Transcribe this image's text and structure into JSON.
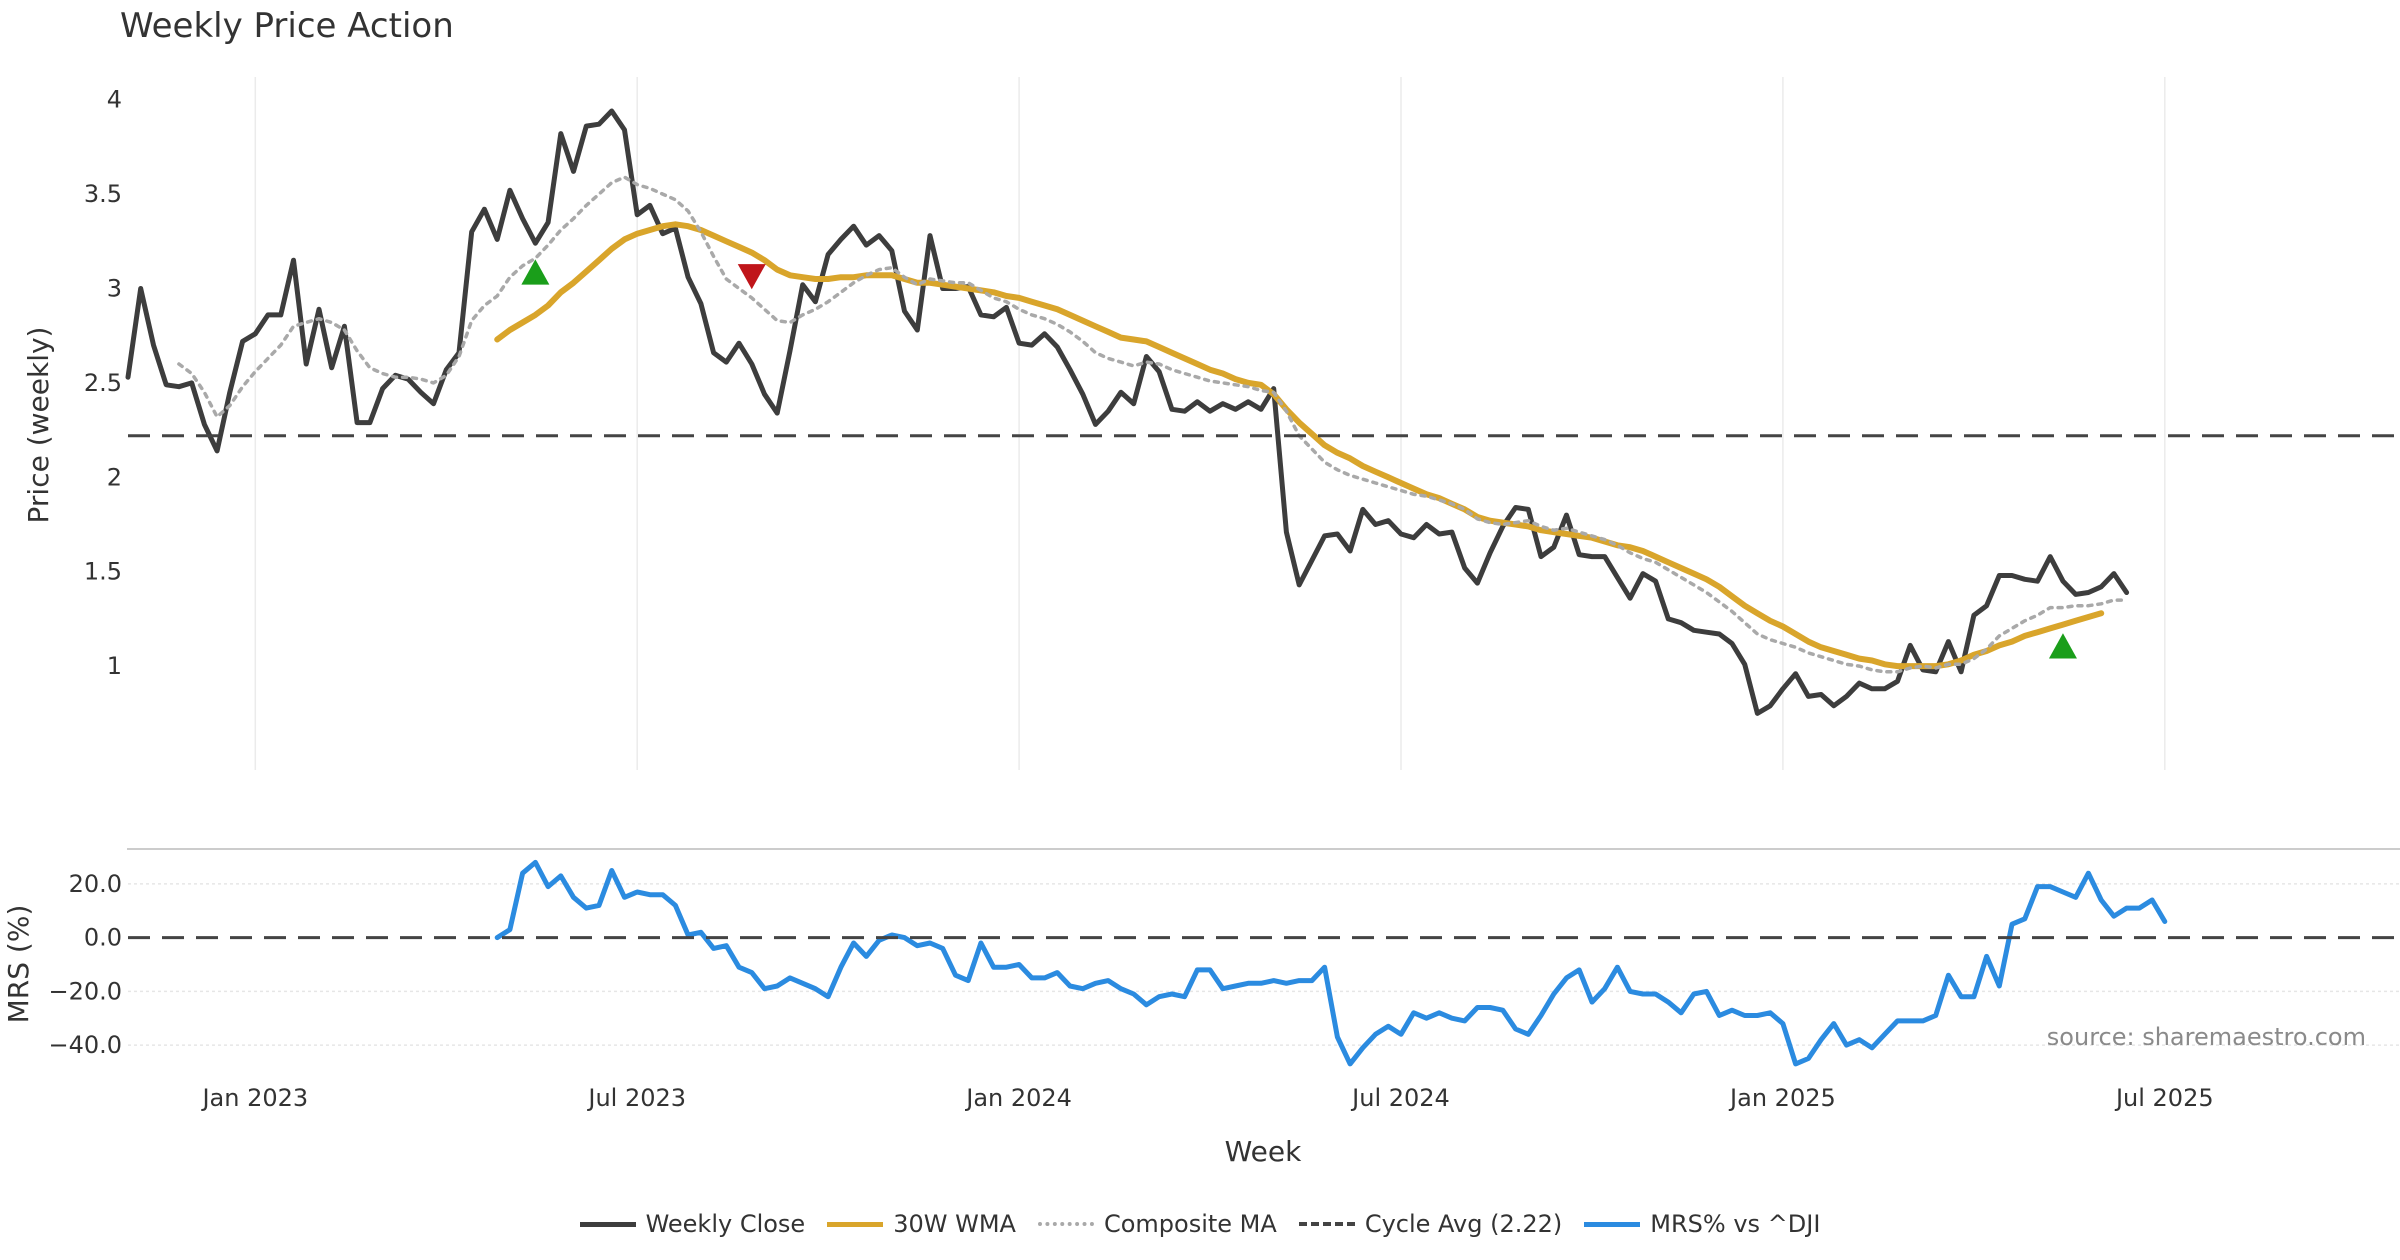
{
  "chart_data": [
    {
      "type": "line",
      "title": "Weekly Price Action",
      "ylabel": "Price (weekly)",
      "ylim": [
        0.45,
        4.12
      ],
      "yticks": [
        "1",
        "1.5",
        "2",
        "2.5",
        "3",
        "3.5",
        "4"
      ],
      "ytick_values": [
        1,
        1.5,
        2,
        2.5,
        3,
        3.5,
        4
      ],
      "grid": "vertical",
      "series": [
        {
          "name": "Weekly Close",
          "color": "#3d3d3d",
          "style": "solid",
          "values": [
            2.53,
            3.0,
            2.7,
            2.49,
            2.48,
            2.5,
            2.28,
            2.14,
            2.45,
            2.72,
            2.76,
            2.86,
            2.86,
            3.15,
            2.6,
            2.89,
            2.58,
            2.8,
            2.29,
            2.29,
            2.47,
            2.54,
            2.52,
            2.45,
            2.39,
            2.57,
            2.66,
            3.3,
            3.42,
            3.26,
            3.52,
            3.37,
            3.24,
            3.35,
            3.82,
            3.62,
            3.86,
            3.87,
            3.94,
            3.84,
            3.39,
            3.44,
            3.29,
            3.32,
            3.06,
            2.92,
            2.66,
            2.61,
            2.71,
            2.6,
            2.44,
            2.34,
            2.67,
            3.02,
            2.93,
            3.18,
            3.26,
            3.33,
            3.23,
            3.28,
            3.2,
            2.88,
            2.78,
            3.28,
            3.0,
            3.0,
            3.01,
            2.86,
            2.85,
            2.9,
            2.71,
            2.7,
            2.76,
            2.69,
            2.57,
            2.44,
            2.28,
            2.35,
            2.45,
            2.39,
            2.64,
            2.56,
            2.36,
            2.35,
            2.4,
            2.35,
            2.39,
            2.36,
            2.4,
            2.36,
            2.47,
            1.71,
            1.43,
            1.56,
            1.69,
            1.7,
            1.61,
            1.83,
            1.75,
            1.77,
            1.7,
            1.68,
            1.75,
            1.7,
            1.71,
            1.52,
            1.44,
            1.6,
            1.74,
            1.84,
            1.83,
            1.58,
            1.63,
            1.8,
            1.59,
            1.58,
            1.58,
            1.47,
            1.36,
            1.49,
            1.45,
            1.25,
            1.23,
            1.19,
            1.18,
            1.17,
            1.12,
            1.01,
            0.75,
            0.79,
            0.88,
            0.96,
            0.84,
            0.85,
            0.79,
            0.84,
            0.91,
            0.88,
            0.88,
            0.92,
            1.11,
            0.98,
            0.97,
            1.13,
            0.97,
            1.27,
            1.32,
            1.48,
            1.48,
            1.46,
            1.45,
            1.58,
            1.45,
            1.38,
            1.39,
            1.42,
            1.49,
            1.39
          ]
        },
        {
          "name": "30W WMA",
          "color": "#d9a52b",
          "style": "solid",
          "values": [
            null,
            null,
            null,
            null,
            null,
            null,
            null,
            null,
            null,
            null,
            null,
            null,
            null,
            null,
            null,
            null,
            null,
            null,
            null,
            null,
            null,
            null,
            null,
            null,
            null,
            null,
            null,
            null,
            null,
            2.73,
            2.78,
            2.82,
            2.86,
            2.91,
            2.98,
            3.03,
            3.09,
            3.15,
            3.21,
            3.26,
            3.29,
            3.31,
            3.33,
            3.34,
            3.33,
            3.31,
            3.28,
            3.25,
            3.22,
            3.19,
            3.15,
            3.1,
            3.07,
            3.06,
            3.05,
            3.05,
            3.06,
            3.06,
            3.07,
            3.07,
            3.07,
            3.05,
            3.03,
            3.03,
            3.02,
            3.01,
            3.0,
            2.99,
            2.98,
            2.96,
            2.95,
            2.93,
            2.91,
            2.89,
            2.86,
            2.83,
            2.8,
            2.77,
            2.74,
            2.73,
            2.72,
            2.69,
            2.66,
            2.63,
            2.6,
            2.57,
            2.55,
            2.52,
            2.5,
            2.49,
            2.44,
            2.36,
            2.29,
            2.23,
            2.17,
            2.13,
            2.1,
            2.06,
            2.03,
            2.0,
            1.97,
            1.94,
            1.91,
            1.89,
            1.86,
            1.83,
            1.79,
            1.77,
            1.76,
            1.75,
            1.74,
            1.72,
            1.71,
            1.7,
            1.69,
            1.68,
            1.66,
            1.64,
            1.63,
            1.61,
            1.58,
            1.55,
            1.52,
            1.49,
            1.46,
            1.42,
            1.37,
            1.32,
            1.28,
            1.24,
            1.21,
            1.17,
            1.13,
            1.1,
            1.08,
            1.06,
            1.04,
            1.03,
            1.01,
            1.0,
            1.0,
            1.0,
            1.0,
            1.01,
            1.03,
            1.06,
            1.08,
            1.11,
            1.13,
            1.16,
            1.18,
            1.2,
            1.22,
            1.24,
            1.26,
            1.28
          ]
        },
        {
          "name": "Composite MA",
          "color": "#a9a9a9",
          "style": "dotted",
          "values": [
            null,
            null,
            null,
            null,
            2.6,
            2.55,
            2.45,
            2.32,
            2.38,
            2.48,
            2.56,
            2.63,
            2.7,
            2.8,
            2.82,
            2.84,
            2.82,
            2.78,
            2.67,
            2.58,
            2.55,
            2.53,
            2.53,
            2.52,
            2.5,
            2.54,
            2.64,
            2.83,
            2.91,
            2.96,
            3.06,
            3.12,
            3.16,
            3.23,
            3.31,
            3.37,
            3.44,
            3.5,
            3.56,
            3.59,
            3.55,
            3.53,
            3.5,
            3.47,
            3.41,
            3.3,
            3.17,
            3.05,
            3.0,
            2.95,
            2.89,
            2.83,
            2.82,
            2.86,
            2.89,
            2.93,
            2.98,
            3.03,
            3.07,
            3.1,
            3.11,
            3.06,
            3.02,
            3.05,
            3.04,
            3.03,
            3.03,
            2.99,
            2.95,
            2.93,
            2.89,
            2.86,
            2.84,
            2.81,
            2.77,
            2.72,
            2.66,
            2.63,
            2.61,
            2.59,
            2.61,
            2.6,
            2.57,
            2.55,
            2.53,
            2.51,
            2.5,
            2.49,
            2.48,
            2.46,
            2.45,
            2.35,
            2.22,
            2.15,
            2.08,
            2.04,
            2.01,
            1.99,
            1.97,
            1.95,
            1.93,
            1.91,
            1.9,
            1.88,
            1.86,
            1.83,
            1.78,
            1.76,
            1.75,
            1.76,
            1.77,
            1.74,
            1.72,
            1.73,
            1.71,
            1.69,
            1.67,
            1.64,
            1.6,
            1.57,
            1.55,
            1.51,
            1.47,
            1.43,
            1.39,
            1.34,
            1.29,
            1.23,
            1.17,
            1.14,
            1.12,
            1.1,
            1.07,
            1.05,
            1.03,
            1.01,
            1.0,
            0.98,
            0.97,
            0.97,
            0.99,
            1.0,
            0.99,
            1.01,
            1.01,
            1.04,
            1.09,
            1.16,
            1.2,
            1.24,
            1.27,
            1.31,
            1.31,
            1.32,
            1.32,
            1.33,
            1.35,
            1.35
          ]
        },
        {
          "name": "Cycle Avg (2.22)",
          "color": "#444444",
          "style": "dashed",
          "constant": 2.22
        }
      ],
      "markers": [
        {
          "type": "buy",
          "shape": "triangle-up",
          "color": "#1a9e1a",
          "week_index": 32,
          "value": 3.08
        },
        {
          "type": "sell",
          "shape": "triangle-down",
          "color": "#c0151a",
          "week_index": 49,
          "value": 3.07
        },
        {
          "type": "buy",
          "shape": "triangle-up",
          "color": "#1a9e1a",
          "week_index": 152,
          "value": 1.1
        }
      ]
    },
    {
      "type": "line",
      "ylabel": "MRS (%)",
      "ylim": [
        -53,
        33
      ],
      "yticks": [
        "20.0",
        "0.0",
        "−20.0",
        "−40.0"
      ],
      "ytick_values": [
        20,
        0,
        -20,
        -40
      ],
      "xlabel": "Week",
      "x_ticks": [
        "Jan 2023",
        "Jul 2023",
        "Jan 2024",
        "Jul 2024",
        "Jan 2025",
        "Jul 2025"
      ],
      "x_tick_week_index": [
        10,
        40,
        70,
        100,
        130,
        160
      ],
      "series": [
        {
          "name": "MRS% vs ^DJI",
          "color": "#2b8be0",
          "style": "solid",
          "values": [
            null,
            null,
            null,
            null,
            null,
            null,
            null,
            null,
            null,
            null,
            null,
            null,
            null,
            null,
            null,
            null,
            null,
            null,
            null,
            null,
            null,
            null,
            null,
            null,
            null,
            null,
            null,
            null,
            null,
            0.0,
            3.0,
            24.0,
            28.0,
            19.0,
            23.0,
            15.0,
            11.0,
            12.0,
            25.0,
            15.0,
            17.0,
            16.0,
            16.0,
            12.0,
            1.0,
            2.0,
            -4.0,
            -3.0,
            -11.0,
            -13.0,
            -19.0,
            -18.0,
            -15.0,
            -17.0,
            -19.0,
            -22.0,
            -11.0,
            -2.0,
            -7.0,
            -1.0,
            1.0,
            0.0,
            -3.0,
            -2.0,
            -4.0,
            -14.0,
            -16.0,
            -2.0,
            -11.0,
            -11.0,
            -10.0,
            -15.0,
            -15.0,
            -13.0,
            -18.0,
            -19.0,
            -17.0,
            -16.0,
            -19.0,
            -21.0,
            -25.0,
            -22.0,
            -21.0,
            -22.0,
            -12.0,
            -12.0,
            -19.0,
            -18.0,
            -17.0,
            -17.0,
            -16.0,
            -17.0,
            -16.0,
            -16.0,
            -11.0,
            -37.0,
            -47.0,
            -41.0,
            -36.0,
            -33.0,
            -36.0,
            -28.0,
            -30.0,
            -28.0,
            -30.0,
            -31.0,
            -26.0,
            -26.0,
            -27.0,
            -34.0,
            -36.0,
            -29.0,
            -21.0,
            -15.0,
            -12.0,
            -24.0,
            -19.0,
            -11.0,
            -20.0,
            -21.0,
            -21.0,
            -24.0,
            -28.0,
            -21.0,
            -20.0,
            -29.0,
            -27.0,
            -29.0,
            -29.0,
            -28.0,
            -32.0,
            -47.0,
            -45.0,
            -38.0,
            -32.0,
            -40.0,
            -38.0,
            -41.0,
            -36.0,
            -31.0,
            -31.0,
            -31.0,
            -29.0,
            -14.0,
            -22.0,
            -22.0,
            -7.0,
            -18.0,
            5.0,
            7.0,
            19.0,
            19.0,
            17.0,
            15.0,
            24.0,
            14.0,
            8.0,
            11.0,
            11.0,
            14.0,
            6.0
          ]
        },
        {
          "name": "zero",
          "color": "#444444",
          "style": "dashed",
          "constant": 0
        }
      ],
      "annotation": "source: sharemaestro.com"
    }
  ],
  "legend": [
    {
      "label": "Weekly Close",
      "color": "#3d3d3d",
      "style": "solid"
    },
    {
      "label": "30W WMA",
      "color": "#d9a52b",
      "style": "solid"
    },
    {
      "label": "Composite MA",
      "color": "#a9a9a9",
      "style": "dotted"
    },
    {
      "label": "Cycle Avg (2.22)",
      "color": "#444444",
      "style": "dashed"
    },
    {
      "label": "MRS% vs ^DJI",
      "color": "#2b8be0",
      "style": "solid"
    }
  ]
}
